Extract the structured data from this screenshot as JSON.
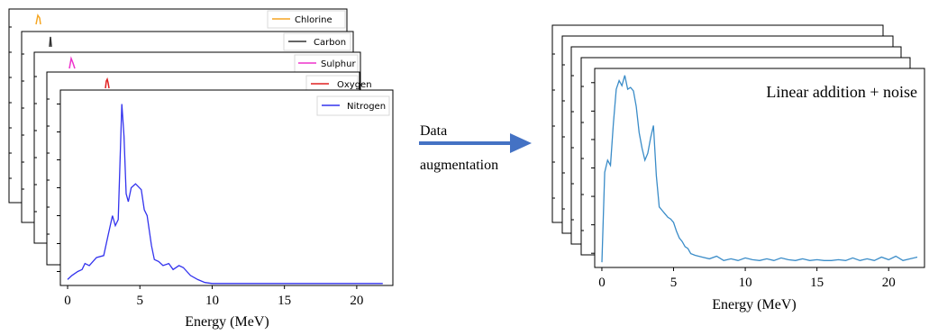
{
  "left_panel": {
    "stack": [
      {
        "name": "Chlorine",
        "color": "#f5a623"
      },
      {
        "name": "Carbon",
        "color": "#333333"
      },
      {
        "name": "Sulphur",
        "color": "#ee33cc"
      },
      {
        "name": "Oxygen",
        "color": "#e02020"
      }
    ],
    "front_legend": "Nitrogen",
    "front_color": "#3333ee",
    "xlabel": "Energy (MeV)",
    "xticks": [
      "0",
      "5",
      "10",
      "15",
      "20"
    ]
  },
  "arrow": {
    "line1": "Data",
    "line2": "augmentation",
    "color": "#4472c4"
  },
  "right_panel": {
    "annotation": "Linear addition + noise",
    "line_color": "#3a8cc8",
    "xlabel": "Energy (MeV)",
    "xticks": [
      "0",
      "5",
      "10",
      "15",
      "20"
    ]
  },
  "chart_data": [
    {
      "type": "line",
      "title": "",
      "xlabel": "Energy (MeV)",
      "ylabel": "",
      "series": [
        {
          "name": "Nitrogen",
          "x": [
            0,
            0.3,
            0.7,
            1,
            1.2,
            1.5,
            2,
            2.5,
            2.8,
            3.1,
            3.3,
            3.5,
            3.75,
            3.9,
            4.05,
            4.2,
            4.4,
            4.7,
            5.1,
            5.3,
            5.5,
            5.8,
            6,
            6.3,
            6.6,
            7,
            7.3,
            7.7,
            8,
            8.5,
            9,
            9.5,
            10,
            10.5,
            12,
            15,
            18,
            20,
            21.8
          ],
          "y": [
            0.3,
            0.5,
            0.7,
            0.8,
            1.1,
            1.0,
            1.4,
            1.5,
            2.5,
            3.5,
            3.0,
            3.3,
            9.1,
            7.5,
            4.6,
            4.2,
            4.9,
            5.1,
            4.8,
            3.8,
            3.5,
            2.0,
            1.3,
            1.2,
            1.0,
            1.1,
            0.8,
            1.0,
            0.9,
            0.5,
            0.3,
            0.15,
            0.1,
            0.1,
            0.1,
            0.1,
            0.1,
            0.1,
            0.1
          ]
        }
      ],
      "xlim": [
        -0.5,
        22.5
      ],
      "ylim": [
        0,
        9.8
      ],
      "xticks": [
        0,
        5,
        10,
        15,
        20
      ],
      "legend": "top-right",
      "grid": false
    },
    {
      "type": "line",
      "title": "",
      "xlabel": "Energy (MeV)",
      "ylabel": "",
      "series": [
        {
          "name": "",
          "x": [
            0,
            0.2,
            0.4,
            0.6,
            0.8,
            1.0,
            1.2,
            1.4,
            1.6,
            1.8,
            2.0,
            2.2,
            2.4,
            2.6,
            2.8,
            3.0,
            3.2,
            3.4,
            3.6,
            3.8,
            4.0,
            4.2,
            4.4,
            4.6,
            4.8,
            5.0,
            5.2,
            5.4,
            5.6,
            5.8,
            6.0,
            6.2,
            6.5,
            7.0,
            7.5,
            8.0,
            8.5,
            9.0,
            9.5,
            10.0,
            10.5,
            11.0,
            11.5,
            12.0,
            12.5,
            13.0,
            13.5,
            14.0,
            14.5,
            15.0,
            15.5,
            16.0,
            16.5,
            17.0,
            17.5,
            18.0,
            18.5,
            19.0,
            19.5,
            20.0,
            20.5,
            21.0,
            21.5,
            22.0
          ],
          "y": [
            0,
            5.2,
            5.9,
            5.6,
            8.0,
            10.0,
            10.5,
            10.2,
            10.8,
            10.0,
            10.1,
            9.9,
            9.0,
            7.5,
            6.6,
            5.9,
            6.3,
            7.2,
            7.9,
            5.0,
            3.2,
            3.0,
            2.8,
            2.6,
            2.5,
            2.3,
            1.8,
            1.4,
            1.2,
            0.9,
            0.8,
            0.5,
            0.4,
            0.3,
            0.2,
            0.35,
            0.1,
            0.2,
            0.1,
            0.25,
            0.15,
            0.1,
            0.2,
            0.1,
            0.25,
            0.15,
            0.1,
            0.2,
            0.1,
            0.15,
            0.1,
            0.1,
            0.15,
            0.1,
            0.25,
            0.1,
            0.2,
            0.1,
            0.3,
            0.15,
            0.35,
            0.1,
            0.2,
            0.3
          ]
        }
      ],
      "xlim": [
        -0.5,
        22.5
      ],
      "ylim": [
        -0.3,
        11.2
      ],
      "xticks": [
        0,
        5,
        10,
        15,
        20
      ],
      "annotation": "Linear addition + noise",
      "grid": false
    }
  ]
}
